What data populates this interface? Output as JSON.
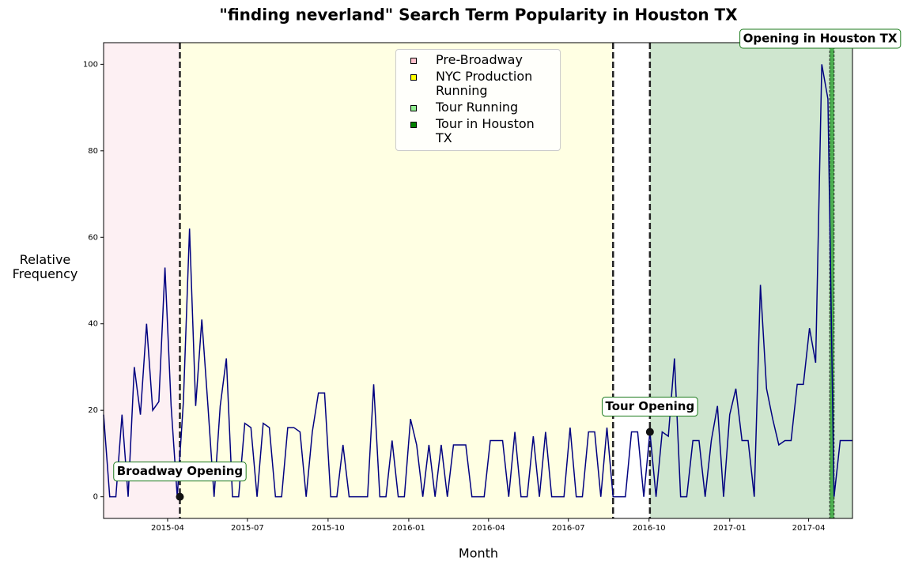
{
  "chart_data": {
    "type": "line",
    "title": "\"finding neverland\" Search Term Popularity in Houston TX",
    "x_label": "Month",
    "y_label": "Relative Frequency",
    "color": "#000080",
    "x": [
      "2015-01-18",
      "2015-01-25",
      "2015-02-01",
      "2015-02-08",
      "2015-02-15",
      "2015-02-22",
      "2015-03-01",
      "2015-03-08",
      "2015-03-15",
      "2015-03-22",
      "2015-03-29",
      "2015-04-05",
      "2015-04-12",
      "2015-04-19",
      "2015-04-26",
      "2015-05-03",
      "2015-05-10",
      "2015-05-17",
      "2015-05-24",
      "2015-05-31",
      "2015-06-07",
      "2015-06-14",
      "2015-06-21",
      "2015-06-28",
      "2015-07-05",
      "2015-07-12",
      "2015-07-19",
      "2015-07-26",
      "2015-08-02",
      "2015-08-09",
      "2015-08-16",
      "2015-08-23",
      "2015-08-30",
      "2015-09-06",
      "2015-09-13",
      "2015-09-20",
      "2015-09-27",
      "2015-10-04",
      "2015-10-11",
      "2015-10-18",
      "2015-10-25",
      "2015-11-01",
      "2015-11-08",
      "2015-11-15",
      "2015-11-22",
      "2015-11-29",
      "2015-12-06",
      "2015-12-13",
      "2015-12-20",
      "2015-12-27",
      "2016-01-03",
      "2016-01-10",
      "2016-01-17",
      "2016-01-24",
      "2016-01-31",
      "2016-02-07",
      "2016-02-14",
      "2016-02-21",
      "2016-02-28",
      "2016-03-06",
      "2016-03-13",
      "2016-03-20",
      "2016-03-27",
      "2016-04-03",
      "2016-04-10",
      "2016-04-17",
      "2016-04-24",
      "2016-05-01",
      "2016-05-08",
      "2016-05-15",
      "2016-05-22",
      "2016-05-29",
      "2016-06-05",
      "2016-06-12",
      "2016-06-19",
      "2016-06-26",
      "2016-07-03",
      "2016-07-10",
      "2016-07-17",
      "2016-07-24",
      "2016-07-31",
      "2016-08-07",
      "2016-08-14",
      "2016-08-21",
      "2016-08-28",
      "2016-09-04",
      "2016-09-11",
      "2016-09-18",
      "2016-09-25",
      "2016-10-02",
      "2016-10-09",
      "2016-10-16",
      "2016-10-23",
      "2016-10-30",
      "2016-11-06",
      "2016-11-13",
      "2016-11-20",
      "2016-11-27",
      "2016-12-04",
      "2016-12-11",
      "2016-12-18",
      "2016-12-25",
      "2017-01-01",
      "2017-01-08",
      "2017-01-15",
      "2017-01-22",
      "2017-01-29",
      "2017-02-05",
      "2017-02-12",
      "2017-02-19",
      "2017-02-26",
      "2017-03-05",
      "2017-03-12",
      "2017-03-19",
      "2017-03-26",
      "2017-04-02",
      "2017-04-09",
      "2017-04-16",
      "2017-04-23",
      "2017-04-30",
      "2017-05-07",
      "2017-05-14",
      "2017-05-21"
    ],
    "values": [
      19,
      0,
      0,
      19,
      0,
      30,
      19,
      40,
      20,
      22,
      53,
      21,
      0,
      22,
      62,
      21,
      41,
      21,
      0,
      21,
      32,
      0,
      0,
      17,
      16,
      0,
      17,
      16,
      0,
      0,
      16,
      16,
      15,
      0,
      15,
      24,
      24,
      0,
      0,
      12,
      0,
      0,
      0,
      0,
      26,
      0,
      0,
      13,
      0,
      0,
      18,
      12,
      0,
      12,
      0,
      12,
      0,
      12,
      12,
      12,
      0,
      0,
      0,
      13,
      13,
      13,
      0,
      15,
      0,
      0,
      14,
      0,
      15,
      0,
      0,
      0,
      16,
      0,
      0,
      15,
      15,
      0,
      16,
      0,
      0,
      0,
      15,
      15,
      0,
      15,
      0,
      15,
      14,
      32,
      0,
      0,
      13,
      13,
      0,
      13,
      21,
      0,
      19,
      25,
      13,
      13,
      0,
      49,
      25,
      18,
      12,
      13,
      13,
      26,
      26,
      39,
      31,
      100,
      92,
      0,
      13,
      13,
      13
    ],
    "xlim": [
      "2015-01-18",
      "2017-05-21"
    ],
    "xticks": [
      "2015-04",
      "2015-07",
      "2015-10",
      "2016-01",
      "2016-04",
      "2016-07",
      "2016-10",
      "2017-01",
      "2017-04"
    ],
    "ylim": [
      -5,
      105
    ],
    "yticks": [
      0,
      20,
      40,
      60,
      80,
      100
    ],
    "regions": [
      {
        "name": "Pre-Broadway",
        "color": "#ffc0cb",
        "fill": "#fdf0f3",
        "start": "2015-01-18",
        "end": "2015-04-15"
      },
      {
        "name": "NYC Production Running",
        "color": "#ffff00",
        "fill": "#ffffe3",
        "start": "2015-04-15",
        "end": "2016-08-21"
      },
      {
        "name": "Tour Running",
        "color": "#90ee90",
        "fill": "#cfe6cf",
        "start": "2016-10-02",
        "end": "2017-05-21"
      },
      {
        "name": "Tour in Houston TX",
        "color": "#008000",
        "fill": "#4caf50",
        "start": "2017-04-25",
        "end": "2017-04-30"
      }
    ],
    "vlines": [
      "2015-04-15",
      "2016-08-21",
      "2016-10-02"
    ],
    "annotations": [
      {
        "text": "Broadway Opening",
        "x": "2015-04-15",
        "y": 0
      },
      {
        "text": "Tour Opening",
        "x": "2016-10-02",
        "y": 15
      },
      {
        "text": "Opening in Houston TX"
      }
    ]
  }
}
